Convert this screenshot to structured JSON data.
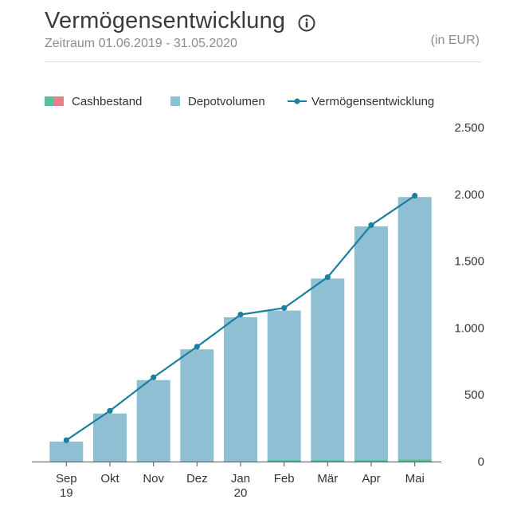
{
  "header": {
    "title": "Vermögensentwicklung",
    "subtitle": "Zeitraum 01.06.2019 - 31.05.2020",
    "unit": "(in EUR)"
  },
  "legend": {
    "cash_label": "Cashbestand",
    "depot_label": "Depotvolumen",
    "line_label": "Vermögensentwicklung"
  },
  "colors": {
    "cash_positive": "#5dbf9a",
    "cash_negative": "#e8808a",
    "bar": "#8fbfd2",
    "line": "#1a7fa0",
    "axis": "#555555",
    "grid": "#e1e1e1"
  },
  "chart_data": {
    "type": "bar",
    "categories": [
      [
        "Sep",
        "19"
      ],
      [
        "Okt"
      ],
      [
        "Nov"
      ],
      [
        "Dez"
      ],
      [
        "Jan",
        "20"
      ],
      [
        "Feb"
      ],
      [
        "Mär"
      ],
      [
        "Apr"
      ],
      [
        "Mai"
      ]
    ],
    "ylim": [
      0,
      2500
    ],
    "y_ticks": [
      0,
      500,
      1000,
      1500,
      2000,
      2500
    ],
    "y_tick_labels": [
      "0",
      "500",
      "1.000",
      "1.500",
      "2.000",
      "2.500"
    ],
    "grid": false,
    "legend_position": "top-left",
    "series": [
      {
        "name": "Depotvolumen",
        "type": "bar",
        "values": [
          150,
          360,
          610,
          840,
          1080,
          1130,
          1370,
          1760,
          1980
        ]
      },
      {
        "name": "Cashbestand",
        "type": "bar",
        "values": [
          0,
          0,
          0,
          0,
          0,
          10,
          10,
          10,
          15
        ]
      },
      {
        "name": "Vermögensentwicklung",
        "type": "line",
        "values": [
          160,
          380,
          630,
          860,
          1100,
          1150,
          1380,
          1770,
          1990
        ]
      }
    ]
  }
}
